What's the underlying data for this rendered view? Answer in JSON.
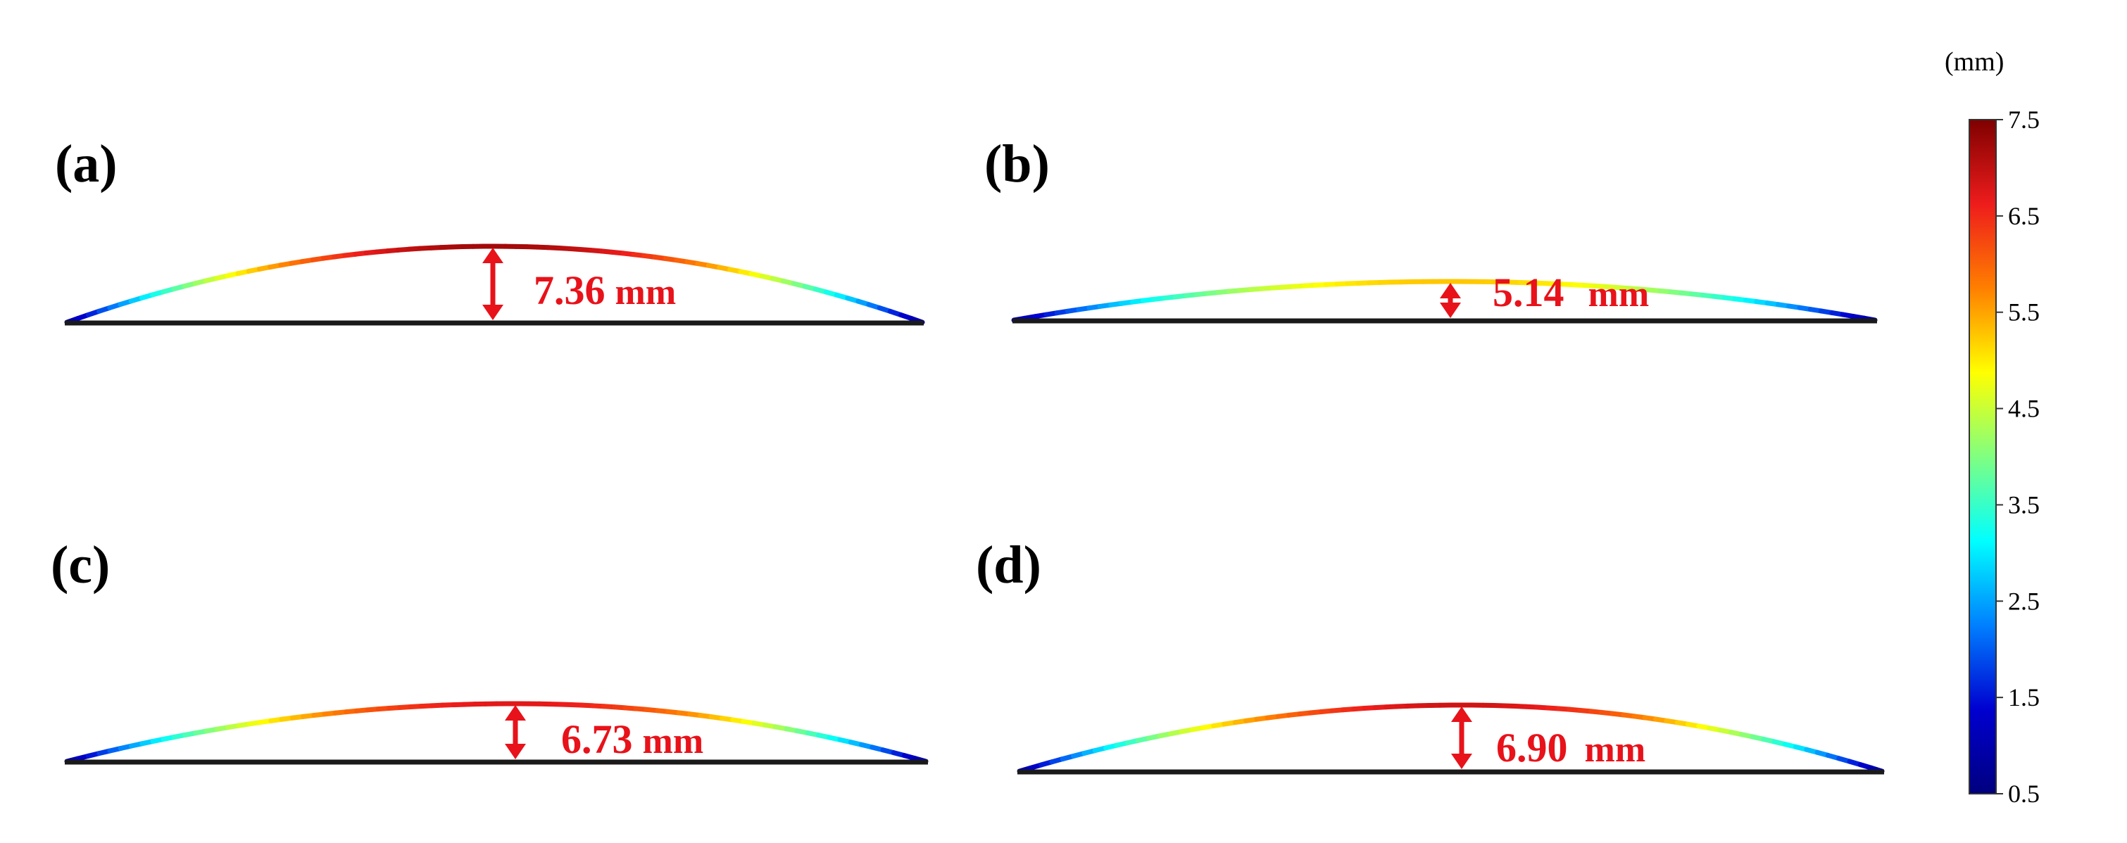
{
  "panels": [
    {
      "label": "(a)",
      "value": "7.36",
      "unit": "mm",
      "deflection": 7.36
    },
    {
      "label": "(b)",
      "value": "5.14",
      "unit": "mm",
      "deflection": 5.14
    },
    {
      "label": "(c)",
      "value": "6.73",
      "unit": "mm",
      "deflection": 6.73
    },
    {
      "label": "(d)",
      "value": "6.90",
      "unit": "mm",
      "deflection": 6.9
    }
  ],
  "colorbar": {
    "unit": "(mm)",
    "min": 0.5,
    "max": 7.5,
    "ticks": [
      "7.5",
      "6.5",
      "5.5",
      "4.5",
      "3.5",
      "2.5",
      "1.5",
      "0.5"
    ],
    "colors": [
      "#7f0000",
      "#ee1c1c",
      "#ff7f00",
      "#ffff00",
      "#80ff80",
      "#00ffff",
      "#0080ff",
      "#0000d0",
      "#00007f"
    ]
  },
  "colors": {
    "arrow": "#e8121a",
    "baseline": "#1a1a1a"
  }
}
